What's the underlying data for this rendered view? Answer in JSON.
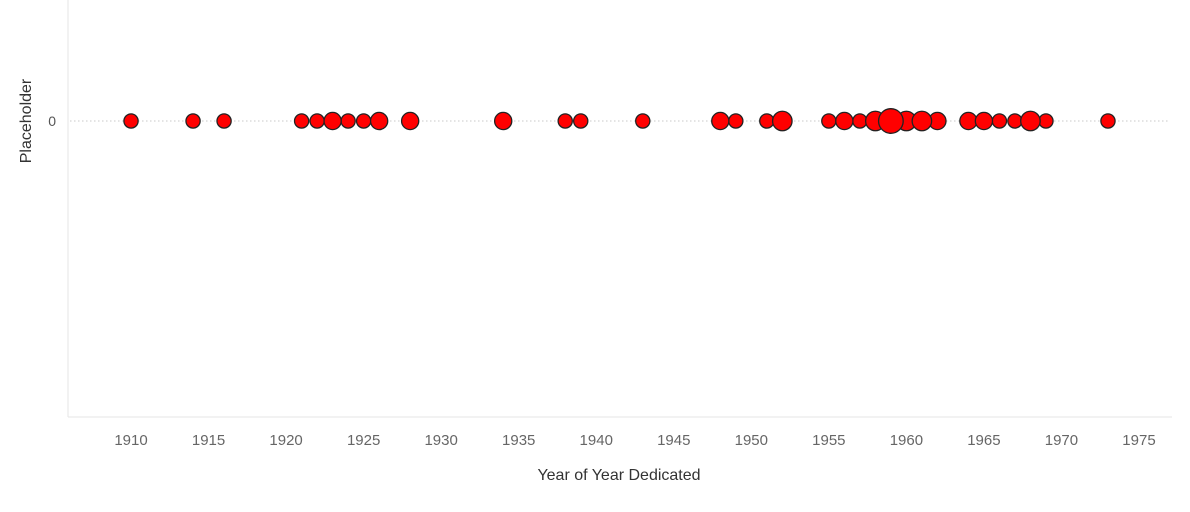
{
  "chart_data": {
    "type": "scatter",
    "title": "",
    "xlabel": "Year of Year Dedicated",
    "ylabel": "Placeholder",
    "xlim": [
      1906,
      1977
    ],
    "x_ticks": [
      1910,
      1915,
      1920,
      1925,
      1930,
      1935,
      1940,
      1945,
      1950,
      1955,
      1960,
      1965,
      1970,
      1975
    ],
    "y_ticks": [
      0
    ],
    "grid": false,
    "legend": "none",
    "marker_color": "#ff0000",
    "marker_edge_color": "#222222",
    "reference_line_color": "#c8c8c8",
    "size_encoding": "count",
    "points": [
      {
        "x": 1910,
        "y": 0,
        "count": 1
      },
      {
        "x": 1914,
        "y": 0,
        "count": 1
      },
      {
        "x": 1916,
        "y": 0,
        "count": 1
      },
      {
        "x": 1921,
        "y": 0,
        "count": 1
      },
      {
        "x": 1922,
        "y": 0,
        "count": 1
      },
      {
        "x": 1923,
        "y": 0,
        "count": 2
      },
      {
        "x": 1924,
        "y": 0,
        "count": 1
      },
      {
        "x": 1925,
        "y": 0,
        "count": 1
      },
      {
        "x": 1926,
        "y": 0,
        "count": 2
      },
      {
        "x": 1928,
        "y": 0,
        "count": 2
      },
      {
        "x": 1934,
        "y": 0,
        "count": 2
      },
      {
        "x": 1938,
        "y": 0,
        "count": 1
      },
      {
        "x": 1939,
        "y": 0,
        "count": 1
      },
      {
        "x": 1943,
        "y": 0,
        "count": 1
      },
      {
        "x": 1948,
        "y": 0,
        "count": 2
      },
      {
        "x": 1949,
        "y": 0,
        "count": 1
      },
      {
        "x": 1951,
        "y": 0,
        "count": 1
      },
      {
        "x": 1952,
        "y": 0,
        "count": 3
      },
      {
        "x": 1955,
        "y": 0,
        "count": 1
      },
      {
        "x": 1956,
        "y": 0,
        "count": 2
      },
      {
        "x": 1957,
        "y": 0,
        "count": 1
      },
      {
        "x": 1958,
        "y": 0,
        "count": 3
      },
      {
        "x": 1959,
        "y": 0,
        "count": 6
      },
      {
        "x": 1960,
        "y": 0,
        "count": 3
      },
      {
        "x": 1961,
        "y": 0,
        "count": 3
      },
      {
        "x": 1962,
        "y": 0,
        "count": 2
      },
      {
        "x": 1964,
        "y": 0,
        "count": 2
      },
      {
        "x": 1965,
        "y": 0,
        "count": 2
      },
      {
        "x": 1966,
        "y": 0,
        "count": 1
      },
      {
        "x": 1967,
        "y": 0,
        "count": 1
      },
      {
        "x": 1968,
        "y": 0,
        "count": 3
      },
      {
        "x": 1969,
        "y": 0,
        "count": 1
      },
      {
        "x": 1973,
        "y": 0,
        "count": 1
      }
    ]
  }
}
